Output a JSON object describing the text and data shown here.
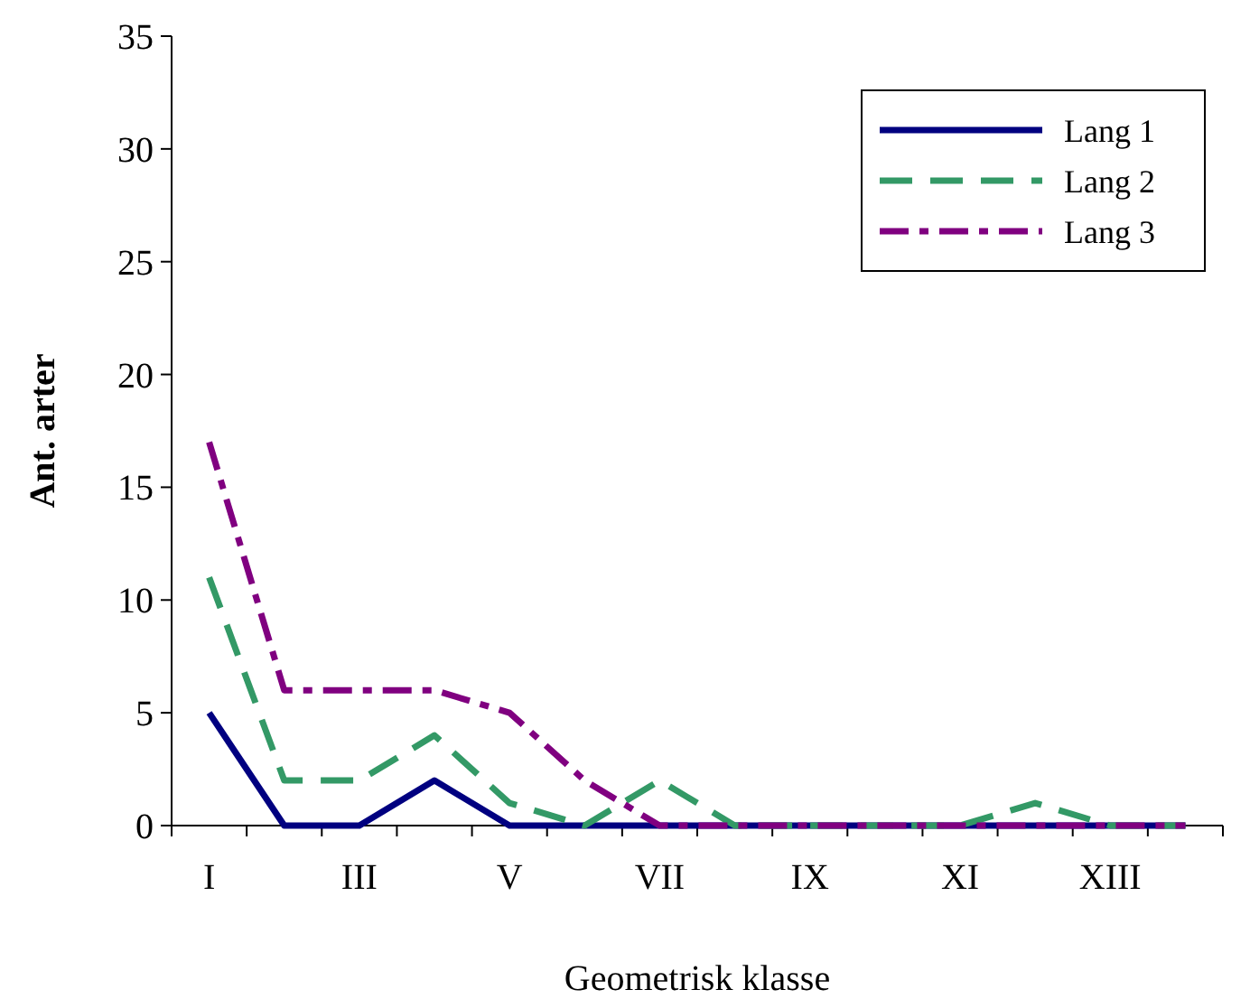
{
  "chart_data": {
    "type": "line",
    "xlabel": "Geometrisk klasse",
    "ylabel": "Ant. arter",
    "categories": [
      "I",
      null,
      "III",
      null,
      "V",
      null,
      "VII",
      null,
      "IX",
      null,
      "XI",
      null,
      "XIII",
      null
    ],
    "series": [
      {
        "name": "Lang 1",
        "color": "#000080",
        "line_style": "solid",
        "values": [
          5,
          0,
          0,
          2,
          0,
          0,
          0,
          0,
          0,
          0,
          0,
          0,
          0,
          0
        ]
      },
      {
        "name": "Lang 2",
        "color": "#339966",
        "line_style": "dashed",
        "values": [
          11,
          2,
          2,
          4,
          1,
          0,
          2,
          0,
          0,
          0,
          0,
          1,
          0,
          0
        ]
      },
      {
        "name": "Lang 3",
        "color": "#800080",
        "line_style": "dashdot",
        "values": [
          17,
          6,
          6,
          6,
          5,
          2,
          0,
          0,
          0,
          0,
          0,
          0,
          0,
          0
        ]
      }
    ],
    "ylim": [
      0,
      35
    ],
    "yticks": [
      0,
      5,
      10,
      15,
      20,
      25,
      30,
      35
    ],
    "grid": false,
    "legend": "top right",
    "marker": "none"
  }
}
